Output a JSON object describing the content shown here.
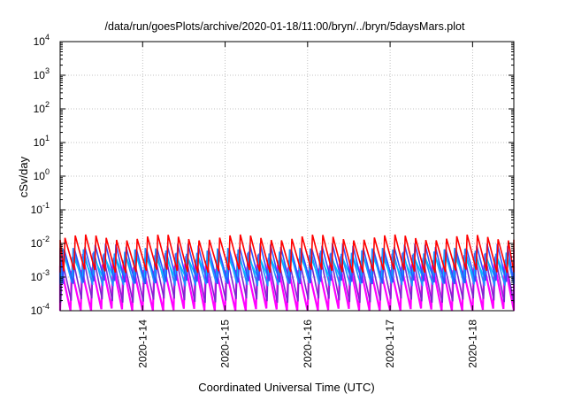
{
  "chart_data": {
    "type": "line",
    "title": "/data/run/goesPlots/archive/2020-01-18/11:00/bryn/../bryn/5daysMars.plot",
    "xlabel": "Coordinated Universal Time (UTC)",
    "ylabel": "cSv/day",
    "y_scale": "log",
    "ylim": [
      0.0001,
      10000
    ],
    "y_ticks": [
      {
        "value": 0.0001,
        "base": "10",
        "exp": "-4"
      },
      {
        "value": 0.001,
        "base": "10",
        "exp": "-3"
      },
      {
        "value": 0.01,
        "base": "10",
        "exp": "-2"
      },
      {
        "value": 0.1,
        "base": "10",
        "exp": "-1"
      },
      {
        "value": 1,
        "base": "10",
        "exp": "0"
      },
      {
        "value": 10,
        "base": "10",
        "exp": "1"
      },
      {
        "value": 100,
        "base": "10",
        "exp": "2"
      },
      {
        "value": 1000,
        "base": "10",
        "exp": "3"
      },
      {
        "value": 10000,
        "base": "10",
        "exp": "4"
      }
    ],
    "xlim": [
      "2020-01-13",
      "2020-01-18 12:00"
    ],
    "x_ticks": [
      "2020-1-14",
      "2020-1-15",
      "2020-1-16",
      "2020-1-17",
      "2020-1-18"
    ],
    "grid": true,
    "legend": "none",
    "series": [
      {
        "color": "#ff00ff",
        "min": 0.0001,
        "max": 0.002
      },
      {
        "color": "#7d26cd",
        "min": 0.0002,
        "max": 0.004
      },
      {
        "color": "#1e90ff",
        "min": 0.0006,
        "max": 0.006
      },
      {
        "color": "#00bfff",
        "min": 0.0009,
        "max": 0.004
      },
      {
        "color": "#3050ff",
        "min": 0.0007,
        "max": 0.008
      },
      {
        "color": "#ff0000",
        "min": 0.0015,
        "max": 0.015
      }
    ]
  }
}
